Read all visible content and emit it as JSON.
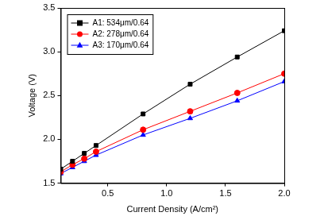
{
  "chart_data": {
    "type": "line",
    "x_label": "Current Density (A/cm²)",
    "y_label": "Voltage (V)",
    "x": [
      0.1,
      0.2,
      0.3,
      0.4,
      0.8,
      1.2,
      1.6,
      2.0
    ],
    "series": [
      {
        "name": "A1: 534μm/0.64",
        "color": "#000000",
        "marker": "square",
        "values": [
          1.66,
          1.75,
          1.84,
          1.93,
          2.29,
          2.63,
          2.94,
          3.24
        ]
      },
      {
        "name": "A2: 278μm/0.64",
        "color": "#ff0000",
        "marker": "circle",
        "values": [
          1.63,
          1.71,
          1.78,
          1.86,
          2.11,
          2.32,
          2.53,
          2.75
        ]
      },
      {
        "name": "A3: 170μm/0.64",
        "color": "#0000ff",
        "marker": "triangle",
        "values": [
          1.61,
          1.68,
          1.75,
          1.82,
          2.05,
          2.24,
          2.44,
          2.66
        ]
      }
    ],
    "xlim": [
      0.1,
      2.0
    ],
    "xticks": [
      {
        "value": 0.5,
        "label": "0.5"
      },
      {
        "value": 1.0,
        "label": "1.0"
      },
      {
        "value": 1.5,
        "label": "1.5"
      },
      {
        "value": 2.0,
        "label": "2.0"
      }
    ],
    "ylim": [
      1.5,
      3.5
    ],
    "yticks": [
      {
        "value": 1.5,
        "label": "1.5"
      },
      {
        "value": 2.0,
        "label": "2.0"
      },
      {
        "value": 2.5,
        "label": "2.5"
      },
      {
        "value": 3.0,
        "label": "3.0"
      },
      {
        "value": 3.5,
        "label": "3.5"
      }
    ],
    "grid": false,
    "legend": "upper left"
  }
}
